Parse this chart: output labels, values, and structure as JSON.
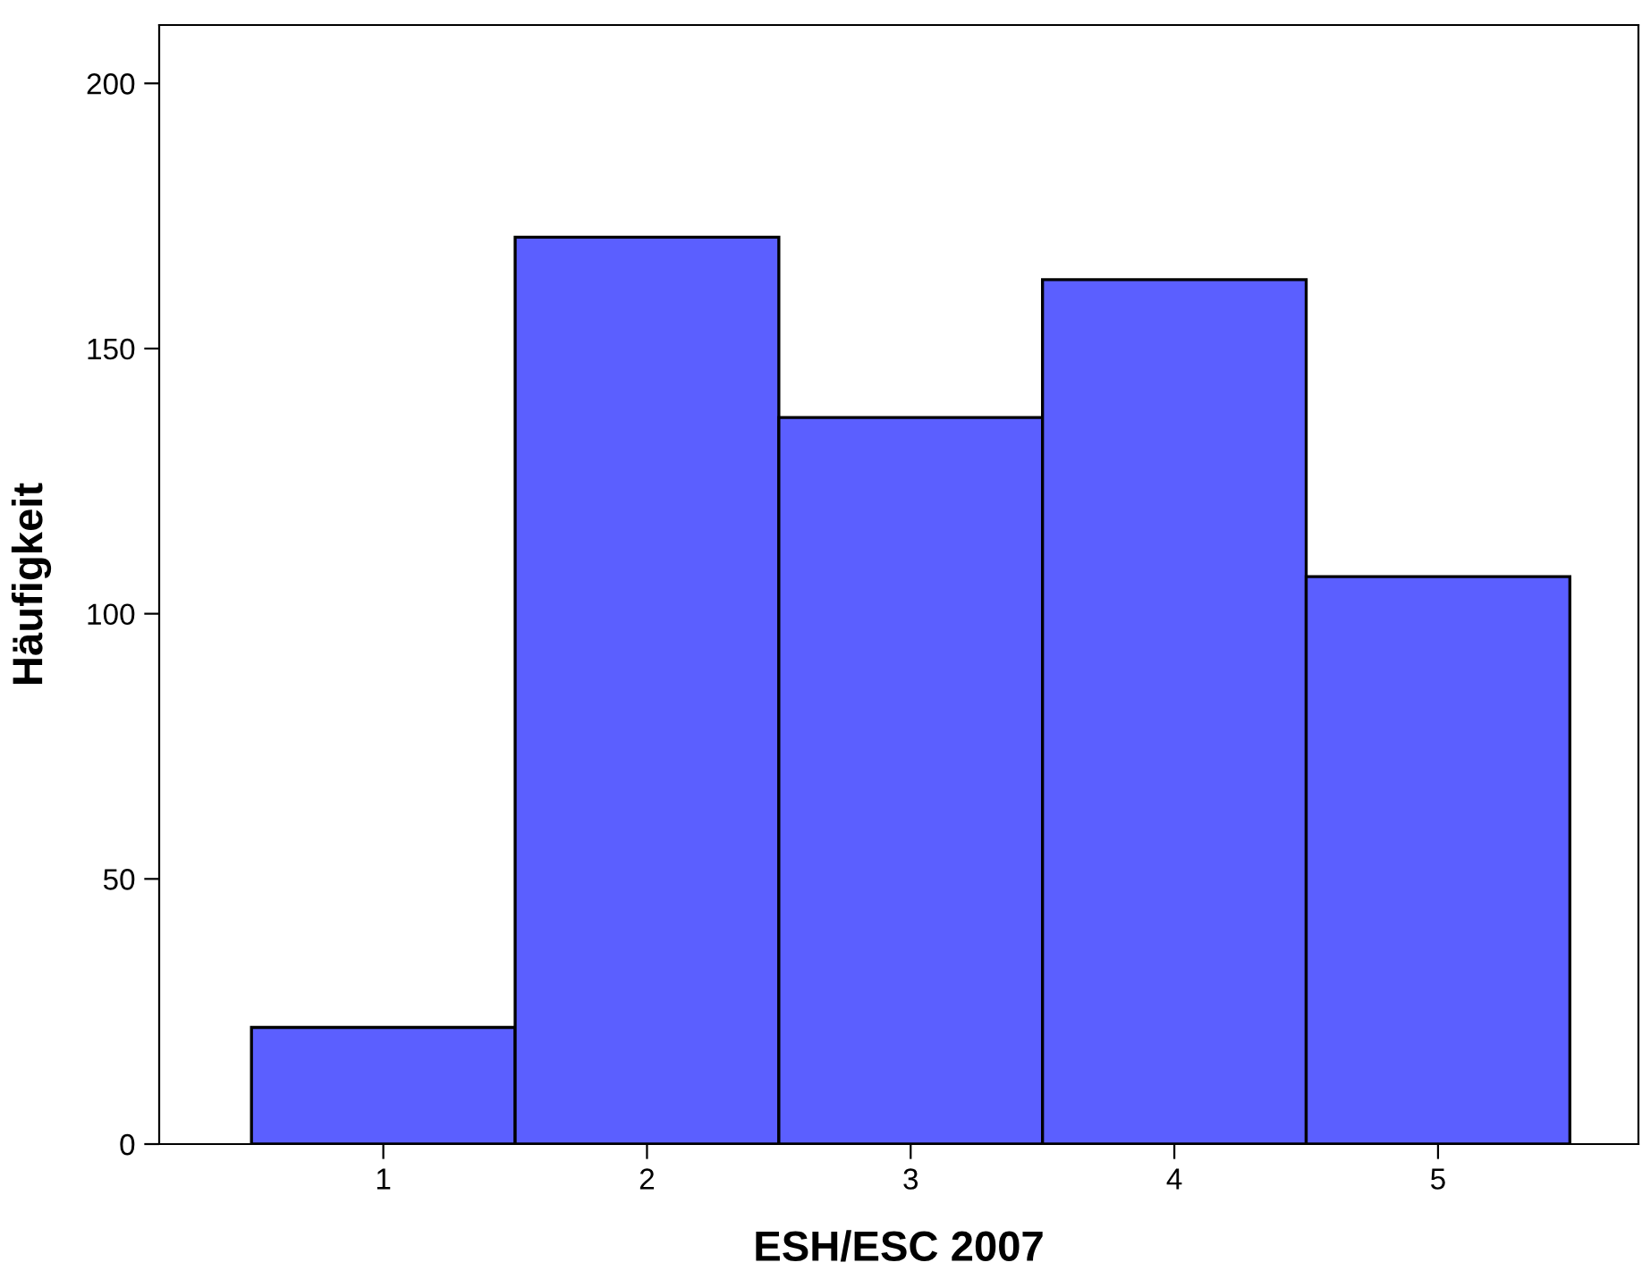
{
  "chart_data": {
    "type": "histogram",
    "xlabel": "ESH/ESC 2007",
    "ylabel": "Häufigkeit",
    "bins": [
      0.5,
      1.5,
      2.5,
      3.5,
      4.5,
      5.5
    ],
    "values": [
      22,
      171,
      137,
      163,
      107
    ],
    "color": "#5b5fff",
    "xlim": [
      0.15,
      5.76
    ],
    "ylim": [
      0,
      211
    ],
    "xticks": [
      1,
      2,
      3,
      4,
      5
    ],
    "yticks": [
      0,
      50,
      100,
      150,
      200
    ],
    "grid": false,
    "legend": false
  }
}
